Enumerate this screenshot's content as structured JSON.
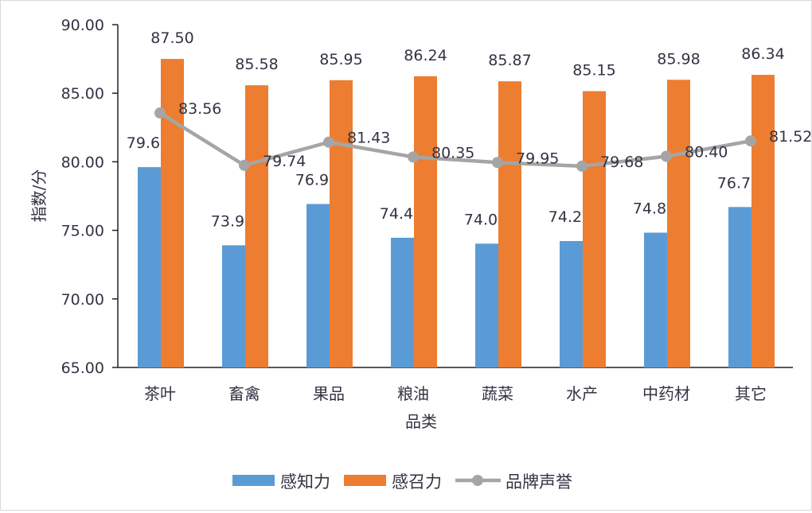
{
  "chart_data": {
    "type": "bar",
    "title": "",
    "xlabel": "品类",
    "ylabel": "指数/分",
    "ylim": [
      65,
      90
    ],
    "yticks": [
      "65.00",
      "70.00",
      "75.00",
      "80.00",
      "85.00",
      "90.00"
    ],
    "categories": [
      "茶叶",
      "畜禽",
      "果品",
      "粮油",
      "蔬菜",
      "水产",
      "中药材",
      "其它"
    ],
    "series": [
      {
        "name": "感知力",
        "kind": "bar",
        "color": "#5b9bd5",
        "values": [
          79.61,
          73.91,
          76.92,
          74.46,
          74.03,
          74.22,
          74.83,
          76.7
        ]
      },
      {
        "name": "感召力",
        "kind": "bar",
        "color": "#ed7d31",
        "values": [
          87.5,
          85.58,
          85.95,
          86.24,
          85.87,
          85.15,
          85.98,
          86.34
        ]
      },
      {
        "name": "品牌声誉",
        "kind": "line",
        "color": "#a5a5a5",
        "values": [
          83.56,
          79.74,
          81.43,
          80.35,
          79.95,
          79.68,
          80.4,
          81.52
        ]
      }
    ],
    "data_labels": true,
    "grid": false,
    "legend_position": "bottom"
  }
}
